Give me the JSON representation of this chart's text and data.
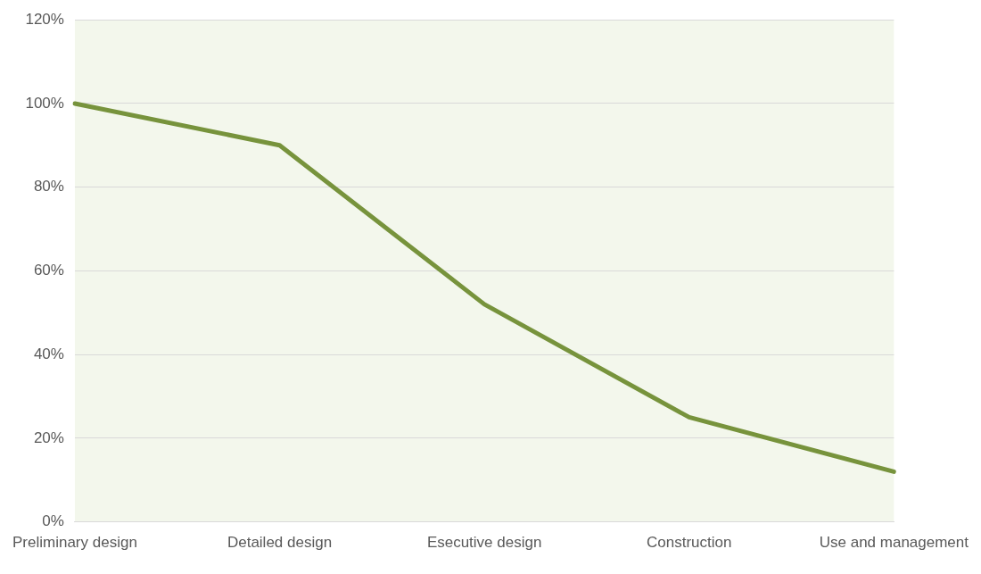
{
  "chart_data": {
    "type": "line",
    "categories": [
      "Preliminary design",
      "Detailed design",
      "Esecutive design",
      "Construction",
      "Use and management"
    ],
    "series": [
      {
        "color": "#77933c",
        "values": [
          100,
          90,
          52,
          25,
          12
        ]
      }
    ],
    "ylim": [
      0,
      120
    ],
    "yticks": [
      {
        "value": 0,
        "label": "0%"
      },
      {
        "value": 20,
        "label": "20%"
      },
      {
        "value": 40,
        "label": "40%"
      },
      {
        "value": 60,
        "label": "60%"
      },
      {
        "value": 80,
        "label": "80%"
      },
      {
        "value": 100,
        "label": "100%"
      },
      {
        "value": 120,
        "label": "120%"
      }
    ],
    "grid": "y",
    "legend": false,
    "marker": "none",
    "line_style": "solid"
  }
}
